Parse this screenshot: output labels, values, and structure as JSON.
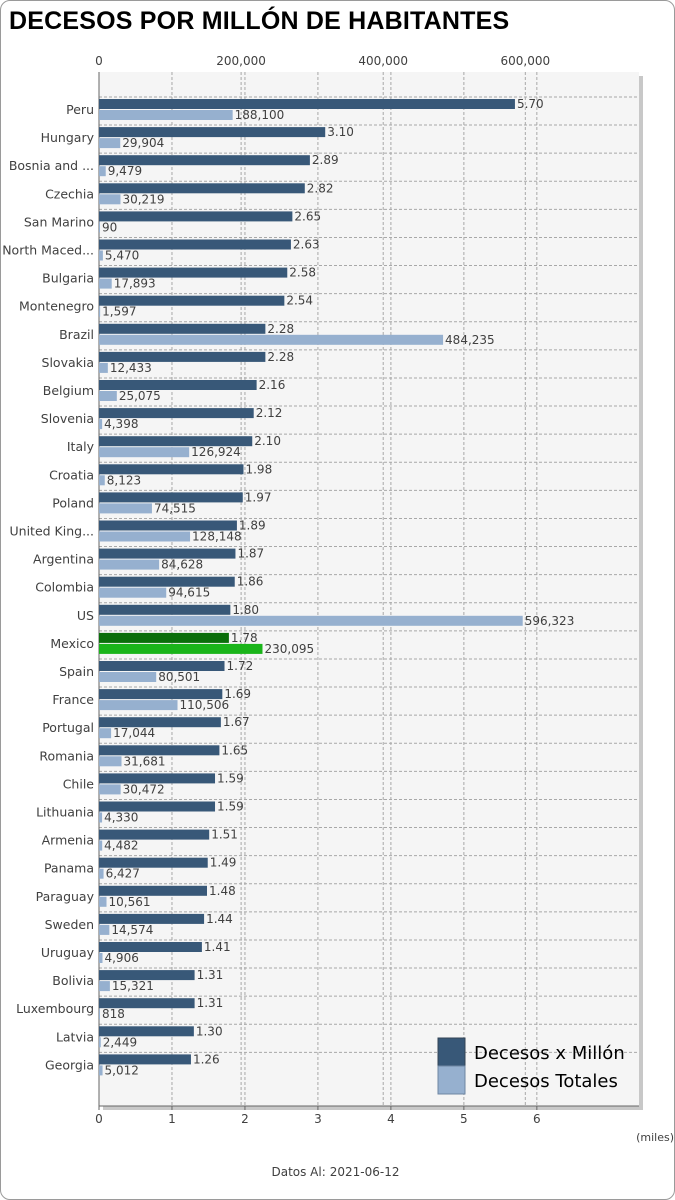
{
  "title": "DECESOS POR MILLÓN DE HABITANTES",
  "footer": {
    "label": "Datos Al:",
    "date": "2021-06-12"
  },
  "unit_note": "(miles)",
  "colors": {
    "per_million": "#385878",
    "total": "#96b0cf",
    "highlight_per_million": "#0a6e0a",
    "highlight_total": "#19b419",
    "plot_bg": "#f5f5f5",
    "grid": "#a8a8a8"
  },
  "chart_data": {
    "type": "bar",
    "orientation": "horizontal",
    "categories": [
      "Peru",
      "Hungary",
      "Bosnia and ...",
      "Czechia",
      "San Marino",
      "North Maced...",
      "Bulgaria",
      "Montenegro",
      "Brazil",
      "Slovakia",
      "Belgium",
      "Slovenia",
      "Italy",
      "Croatia",
      "Poland",
      "United King...",
      "Argentina",
      "Colombia",
      "US",
      "Mexico",
      "Spain",
      "France",
      "Portugal",
      "Romania",
      "Chile",
      "Lithuania",
      "Armenia",
      "Panama",
      "Paraguay",
      "Sweden",
      "Uruguay",
      "Bolivia",
      "Luxembourg",
      "Latvia",
      "Georgia"
    ],
    "highlight_category": "Mexico",
    "series": [
      {
        "name": "Decesos x Millón",
        "axis": "bottom",
        "values": [
          5.7,
          3.1,
          2.89,
          2.82,
          2.65,
          2.63,
          2.58,
          2.54,
          2.28,
          2.28,
          2.16,
          2.12,
          2.1,
          1.98,
          1.97,
          1.89,
          1.87,
          1.86,
          1.8,
          1.78,
          1.72,
          1.69,
          1.67,
          1.65,
          1.59,
          1.59,
          1.51,
          1.49,
          1.48,
          1.44,
          1.41,
          1.31,
          1.31,
          1.3,
          1.26
        ],
        "labels": [
          "5.70",
          "3.10",
          "2.89",
          "2.82",
          "2.65",
          "2.63",
          "2.58",
          "2.54",
          "2.28",
          "2.28",
          "2.16",
          "2.12",
          "2.10",
          "1.98",
          "1.97",
          "1.89",
          "1.87",
          "1.86",
          "1.80",
          "1.78",
          "1.72",
          "1.69",
          "1.67",
          "1.65",
          "1.59",
          "1.59",
          "1.51",
          "1.49",
          "1.48",
          "1.44",
          "1.41",
          "1.31",
          "1.31",
          "1.30",
          "1.26"
        ]
      },
      {
        "name": "Decesos Totales",
        "axis": "top",
        "values": [
          188100,
          29904,
          9479,
          30219,
          90,
          5470,
          17893,
          1597,
          484235,
          12433,
          25075,
          4398,
          126924,
          8123,
          74515,
          128148,
          84628,
          94615,
          596323,
          230095,
          80501,
          110506,
          17044,
          31681,
          30472,
          4330,
          4482,
          6427,
          10561,
          14574,
          4906,
          15321,
          818,
          2449,
          5012
        ],
        "labels": [
          "188,100",
          "29,904",
          "9,479",
          "30,219",
          "90",
          "5,470",
          "17,893",
          "1,597",
          "484,235",
          "12,433",
          "25,075",
          "4,398",
          "126,924",
          "8,123",
          "74,515",
          "128,148",
          "84,628",
          "94,615",
          "596,323",
          "230,095",
          "80,501",
          "110,506",
          "17,044",
          "31,681",
          "30,472",
          "4,330",
          "4,482",
          "6,427",
          "10,561",
          "14,574",
          "4,906",
          "15,321",
          "818",
          "2,449",
          "5,012"
        ]
      }
    ],
    "top_axis": {
      "ticks": [
        0,
        200000,
        400000,
        600000
      ],
      "tick_labels": [
        "0",
        "200,000",
        "400,000",
        "600,000"
      ],
      "range": [
        0,
        760000
      ]
    },
    "bottom_axis": {
      "ticks": [
        0,
        1,
        2,
        3,
        4,
        5,
        6
      ],
      "tick_labels": [
        "0",
        "1",
        "2",
        "3",
        "4",
        "5",
        "6"
      ],
      "range": [
        0,
        7.4
      ]
    },
    "grid": true,
    "legend_position": "bottom-right"
  }
}
